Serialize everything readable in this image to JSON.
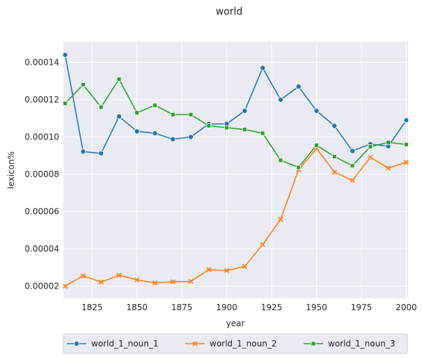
{
  "chart_data": {
    "type": "line",
    "title": "world",
    "xlabel": "year",
    "ylabel": "lexicon%",
    "xlim": [
      1809,
      2001
    ],
    "ylim": [
      1.35e-05,
      0.000151
    ],
    "xticks": [
      1825,
      1850,
      1875,
      1900,
      1925,
      1950,
      1975,
      2000
    ],
    "xtick_labels": [
      "1825",
      "1850",
      "1875",
      "1900",
      "1925",
      "1950",
      "1975",
      "2000"
    ],
    "yticks": [
      2e-05,
      4e-05,
      6e-05,
      8e-05,
      0.0001,
      0.00012,
      0.00014
    ],
    "ytick_labels": [
      "0.00002",
      "0.00004",
      "0.00006",
      "0.00008",
      "0.00010",
      "0.00012",
      "0.00014"
    ],
    "grid": true,
    "legend_position": "bottom-center",
    "x": [
      1810,
      1820,
      1830,
      1840,
      1850,
      1860,
      1870,
      1880,
      1890,
      1900,
      1910,
      1920,
      1930,
      1940,
      1950,
      1960,
      1970,
      1980,
      1990,
      2000
    ],
    "series": [
      {
        "name": "world_1_noun_1",
        "color": "#1f77b4",
        "marker": "circle",
        "values": [
          0.000144,
          9.22e-05,
          9.12e-05,
          0.000111,
          0.000103,
          0.000102,
          9.88e-05,
          0.0001,
          0.000107,
          0.000107,
          0.000114,
          0.000137,
          0.00012,
          0.000127,
          0.000114,
          0.000106,
          9.25e-05,
          9.62e-05,
          9.5e-05,
          0.000109
        ]
      },
      {
        "name": "world_1_noun_2",
        "color": "#ff7f0e",
        "marker": "x",
        "values": [
          2e-05,
          2.56e-05,
          2.22e-05,
          2.59e-05,
          2.34e-05,
          2.18e-05,
          2.24e-05,
          2.26e-05,
          2.89e-05,
          2.84e-05,
          3.06e-05,
          4.23e-05,
          5.58e-05,
          8.24e-05,
          9.38e-05,
          8.12e-05,
          7.67e-05,
          8.91e-05,
          8.33e-05,
          8.64e-05
        ]
      },
      {
        "name": "world_1_noun_3",
        "color": "#2ca02c",
        "marker": "square",
        "values": [
          0.000118,
          0.000128,
          0.000116,
          0.000131,
          0.000113,
          0.000117,
          0.000112,
          0.000112,
          0.000106,
          0.000105,
          0.000104,
          0.000102,
          8.75e-05,
          8.37e-05,
          9.56e-05,
          8.95e-05,
          8.46e-05,
          9.48e-05,
          9.71e-05,
          9.6e-05
        ]
      }
    ]
  }
}
